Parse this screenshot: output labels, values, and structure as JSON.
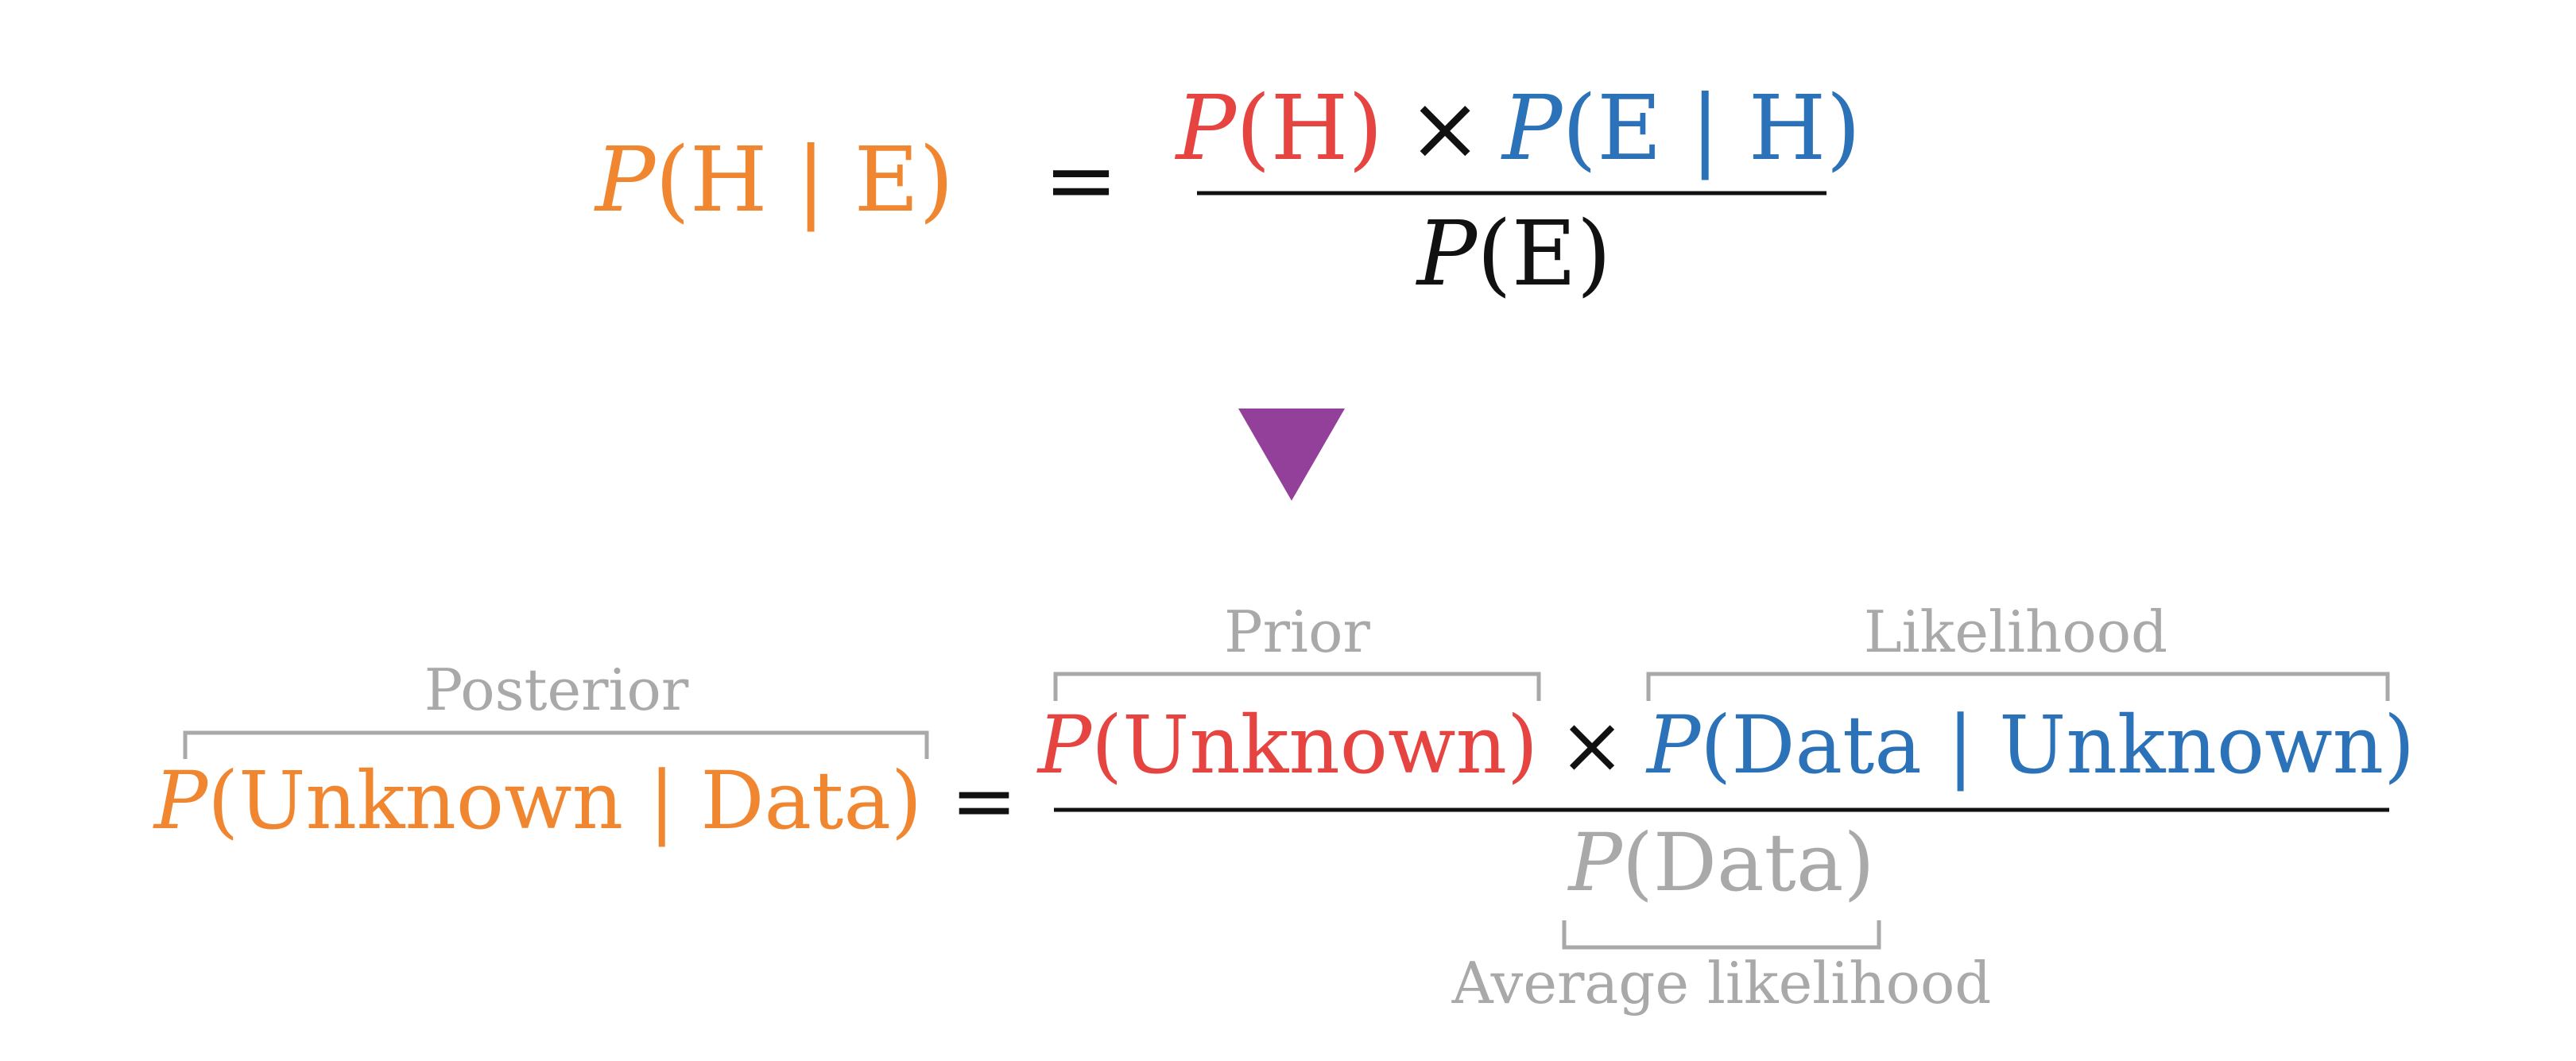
{
  "colors": {
    "posterior": "#F0862F",
    "prior": "#E54440",
    "likelihood": "#2C72B8",
    "evidence_top": "#111111",
    "evidence_bottom": "#A9A9A9",
    "annotation": "#A9A9A9",
    "arrow": "#93409A",
    "rule": "#111111"
  },
  "top_equation": {
    "lhs": {
      "p": "P",
      "open": "(",
      "body": "H | E",
      "close": ")"
    },
    "equals": "=",
    "numerator": {
      "prior": {
        "p": "P",
        "open": "(",
        "body": "H",
        "close": ")"
      },
      "times": "×",
      "likelihood": {
        "p": "P",
        "open": "(",
        "body": "E | H",
        "close": ")"
      }
    },
    "denominator": {
      "p": "P",
      "open": "(",
      "body": "E",
      "close": ")"
    }
  },
  "arrow_icon": "down-triangle",
  "bottom_equation": {
    "lhs": {
      "p": "P",
      "open": "(",
      "body": "Unknown | Data",
      "close": ")",
      "label": "Posterior"
    },
    "equals": "=",
    "numerator": {
      "prior": {
        "p": "P",
        "open": "(",
        "body": "Unknown",
        "close": ")",
        "label": "Prior"
      },
      "times": "×",
      "likelihood": {
        "p": "P",
        "open": "(",
        "body": "Data | Unknown",
        "close": ")",
        "label": "Likelihood"
      }
    },
    "denominator": {
      "p": "P",
      "open": "(",
      "body": "Data",
      "close": ")",
      "label": "Average likelihood"
    }
  }
}
